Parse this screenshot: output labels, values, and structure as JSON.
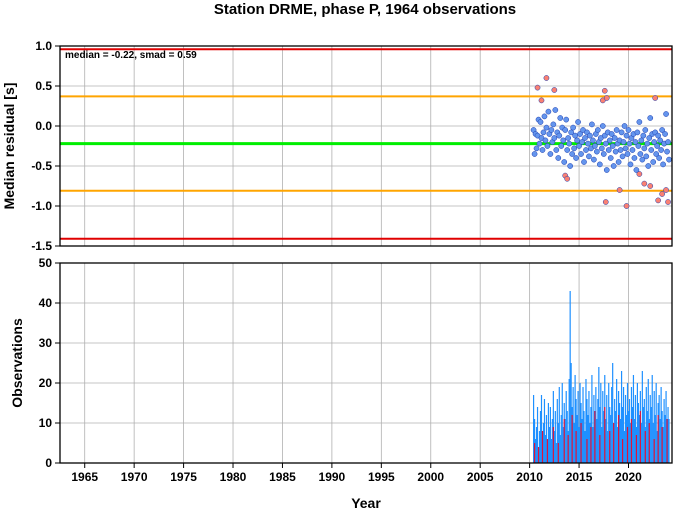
{
  "chart_data": [
    {
      "type": "scatter",
      "title": "Station DRME, phase P, 1964 observations",
      "ylabel": "Median residual [s]",
      "annotation": "median = -0.22, smad = 0.59",
      "xlim": [
        1962.5,
        2024.4
      ],
      "ylim": [
        -1.5,
        1.0
      ],
      "yticks": [
        1.0,
        0.5,
        0.0,
        -0.5,
        -1.0,
        -1.5
      ],
      "ytick_labels": [
        "1.0",
        "0.5",
        "0.0",
        "-0.5",
        "-1.0",
        "-1.5"
      ],
      "grid": true,
      "reference_lines": [
        {
          "y": 0.96,
          "color": "#e00000"
        },
        {
          "y": 0.37,
          "color": "#ffa500"
        },
        {
          "y": -0.22,
          "color": "#00ee00"
        },
        {
          "y": -0.81,
          "color": "#ffa500"
        },
        {
          "y": -1.41,
          "color": "#e00000"
        }
      ],
      "series": [
        {
          "color": "#6495ed",
          "points": [
            [
              2010.4,
              -0.05
            ],
            [
              2010.5,
              -0.35
            ],
            [
              2010.6,
              -0.1
            ],
            [
              2010.7,
              -0.28
            ],
            [
              2010.8,
              -0.12
            ],
            [
              2010.9,
              0.08
            ],
            [
              2011.0,
              -0.22
            ],
            [
              2011.1,
              0.05
            ],
            [
              2011.2,
              -0.15
            ],
            [
              2011.3,
              -0.3
            ],
            [
              2011.4,
              -0.08
            ],
            [
              2011.5,
              0.12
            ],
            [
              2011.6,
              -0.18
            ],
            [
              2011.7,
              -0.02
            ],
            [
              2011.8,
              -0.25
            ],
            [
              2011.9,
              0.18
            ],
            [
              2012.0,
              -0.1
            ],
            [
              2012.1,
              -0.35
            ],
            [
              2012.2,
              -0.05
            ],
            [
              2012.3,
              -0.2
            ],
            [
              2012.4,
              0.02
            ],
            [
              2012.5,
              -0.15
            ],
            [
              2012.6,
              0.2
            ],
            [
              2012.7,
              -0.3
            ],
            [
              2012.8,
              -0.08
            ],
            [
              2012.9,
              -0.4
            ],
            [
              2013.0,
              -0.12
            ],
            [
              2013.1,
              0.1
            ],
            [
              2013.2,
              -0.25
            ],
            [
              2013.3,
              -0.02
            ],
            [
              2013.4,
              -0.18
            ],
            [
              2013.5,
              -0.45
            ],
            [
              2013.6,
              -0.05
            ],
            [
              2013.7,
              0.08
            ],
            [
              2013.8,
              -0.3
            ],
            [
              2013.9,
              -0.15
            ],
            [
              2014.0,
              -0.22
            ],
            [
              2014.1,
              -0.5
            ],
            [
              2014.2,
              -0.08
            ],
            [
              2014.3,
              -0.35
            ],
            [
              2014.4,
              -0.02
            ],
            [
              2014.5,
              -0.28
            ],
            [
              2014.6,
              -0.12
            ],
            [
              2014.7,
              -0.4
            ],
            [
              2014.8,
              -0.18
            ],
            [
              2014.9,
              0.05
            ],
            [
              2015.0,
              -0.25
            ],
            [
              2015.1,
              -0.1
            ],
            [
              2015.2,
              -0.35
            ],
            [
              2015.3,
              -0.2
            ],
            [
              2015.4,
              -0.05
            ],
            [
              2015.5,
              -0.45
            ],
            [
              2015.6,
              -0.15
            ],
            [
              2015.7,
              -0.3
            ],
            [
              2015.8,
              -0.08
            ],
            [
              2015.9,
              -0.22
            ],
            [
              2016.0,
              -0.38
            ],
            [
              2016.1,
              -0.12
            ],
            [
              2016.2,
              -0.28
            ],
            [
              2016.3,
              0.02
            ],
            [
              2016.4,
              -0.18
            ],
            [
              2016.5,
              -0.42
            ],
            [
              2016.6,
              -0.25
            ],
            [
              2016.7,
              -0.1
            ],
            [
              2016.8,
              -0.32
            ],
            [
              2016.9,
              -0.05
            ],
            [
              2017.0,
              -0.2
            ],
            [
              2017.1,
              -0.48
            ],
            [
              2017.2,
              -0.15
            ],
            [
              2017.3,
              -0.28
            ],
            [
              2017.4,
              0.0
            ],
            [
              2017.5,
              -0.35
            ],
            [
              2017.6,
              -0.12
            ],
            [
              2017.7,
              -0.22
            ],
            [
              2017.8,
              -0.55
            ],
            [
              2017.9,
              -0.08
            ],
            [
              2018.0,
              -0.3
            ],
            [
              2018.1,
              -0.18
            ],
            [
              2018.2,
              -0.4
            ],
            [
              2018.3,
              -0.1
            ],
            [
              2018.4,
              -0.25
            ],
            [
              2018.5,
              -0.5
            ],
            [
              2018.6,
              -0.15
            ],
            [
              2018.7,
              -0.32
            ],
            [
              2018.8,
              -0.05
            ],
            [
              2018.9,
              -0.22
            ],
            [
              2019.0,
              -0.45
            ],
            [
              2019.1,
              -0.18
            ],
            [
              2019.2,
              -0.3
            ],
            [
              2019.3,
              -0.08
            ],
            [
              2019.4,
              -0.38
            ],
            [
              2019.5,
              -0.2
            ],
            [
              2019.6,
              0.0
            ],
            [
              2019.7,
              -0.28
            ],
            [
              2019.8,
              -0.12
            ],
            [
              2019.9,
              -0.35
            ],
            [
              2020.0,
              -0.05
            ],
            [
              2020.1,
              -0.22
            ],
            [
              2020.2,
              -0.48
            ],
            [
              2020.3,
              -0.15
            ],
            [
              2020.4,
              -0.3
            ],
            [
              2020.5,
              -0.1
            ],
            [
              2020.6,
              -0.4
            ],
            [
              2020.7,
              -0.2
            ],
            [
              2020.8,
              -0.55
            ],
            [
              2020.9,
              -0.08
            ],
            [
              2021.0,
              -0.25
            ],
            [
              2021.1,
              0.05
            ],
            [
              2021.2,
              -0.35
            ],
            [
              2021.3,
              -0.18
            ],
            [
              2021.4,
              -0.42
            ],
            [
              2021.5,
              -0.12
            ],
            [
              2021.6,
              -0.28
            ],
            [
              2021.7,
              -0.05
            ],
            [
              2021.8,
              -0.38
            ],
            [
              2021.9,
              -0.22
            ],
            [
              2022.0,
              -0.5
            ],
            [
              2022.1,
              -0.15
            ],
            [
              2022.2,
              0.1
            ],
            [
              2022.3,
              -0.3
            ],
            [
              2022.4,
              -0.1
            ],
            [
              2022.5,
              -0.45
            ],
            [
              2022.6,
              -0.2
            ],
            [
              2022.7,
              -0.08
            ],
            [
              2022.8,
              -0.35
            ],
            [
              2022.9,
              -0.25
            ],
            [
              2023.0,
              -0.12
            ],
            [
              2023.1,
              -0.4
            ],
            [
              2023.2,
              -0.18
            ],
            [
              2023.3,
              -0.3
            ],
            [
              2023.4,
              -0.05
            ],
            [
              2023.5,
              -0.48
            ],
            [
              2023.6,
              -0.22
            ],
            [
              2023.7,
              -0.1
            ],
            [
              2023.8,
              0.15
            ],
            [
              2023.9,
              -0.32
            ],
            [
              2024.0,
              -0.2
            ],
            [
              2024.1,
              -0.42
            ]
          ]
        },
        {
          "color": "#fa8072",
          "points": [
            [
              2010.8,
              0.48
            ],
            [
              2011.2,
              0.32
            ],
            [
              2011.7,
              0.6
            ],
            [
              2012.5,
              0.45
            ],
            [
              2013.6,
              -0.62
            ],
            [
              2013.8,
              -0.66
            ],
            [
              2017.4,
              0.32
            ],
            [
              2017.6,
              0.44
            ],
            [
              2017.8,
              0.35
            ],
            [
              2017.7,
              -0.95
            ],
            [
              2019.1,
              -0.8
            ],
            [
              2019.8,
              -1.0
            ],
            [
              2021.1,
              -0.6
            ],
            [
              2021.6,
              -0.72
            ],
            [
              2022.2,
              -0.75
            ],
            [
              2022.7,
              0.35
            ],
            [
              2023.0,
              -0.93
            ],
            [
              2023.4,
              -0.85
            ],
            [
              2023.8,
              -0.8
            ],
            [
              2024.0,
              -0.95
            ]
          ]
        }
      ]
    },
    {
      "type": "bar",
      "ylabel": "Observations",
      "xlabel": "Year",
      "xlim": [
        1962.5,
        2024.4
      ],
      "ylim": [
        0,
        50
      ],
      "yticks": [
        0,
        10,
        20,
        30,
        40,
        50
      ],
      "xticks": [
        1965,
        1970,
        1975,
        1980,
        1985,
        1990,
        1995,
        2000,
        2005,
        2010,
        2015,
        2020
      ],
      "grid": true,
      "series": [
        {
          "color": "#1e90ff",
          "x": [
            2010.4,
            2010.5,
            2010.6,
            2010.7,
            2010.8,
            2010.9,
            2011.0,
            2011.1,
            2011.2,
            2011.3,
            2011.4,
            2011.5,
            2011.6,
            2011.7,
            2011.8,
            2011.9,
            2012.0,
            2012.1,
            2012.2,
            2012.3,
            2012.4,
            2012.5,
            2012.6,
            2012.7,
            2012.8,
            2012.9,
            2013.0,
            2013.1,
            2013.2,
            2013.3,
            2013.4,
            2013.5,
            2013.6,
            2013.7,
            2013.8,
            2013.9,
            2014.0,
            2014.1,
            2014.2,
            2014.3,
            2014.4,
            2014.5,
            2014.6,
            2014.7,
            2014.8,
            2014.9,
            2015.0,
            2015.1,
            2015.2,
            2015.3,
            2015.4,
            2015.5,
            2015.6,
            2015.7,
            2015.8,
            2015.9,
            2016.0,
            2016.1,
            2016.2,
            2016.3,
            2016.4,
            2016.5,
            2016.6,
            2016.7,
            2016.8,
            2016.9,
            2017.0,
            2017.1,
            2017.2,
            2017.3,
            2017.4,
            2017.5,
            2017.6,
            2017.7,
            2017.8,
            2017.9,
            2018.0,
            2018.1,
            2018.2,
            2018.3,
            2018.4,
            2018.5,
            2018.6,
            2018.7,
            2018.8,
            2018.9,
            2019.0,
            2019.1,
            2019.2,
            2019.3,
            2019.4,
            2019.5,
            2019.6,
            2019.7,
            2019.8,
            2019.9,
            2020.0,
            2020.1,
            2020.2,
            2020.3,
            2020.4,
            2020.5,
            2020.6,
            2020.7,
            2020.8,
            2020.9,
            2021.0,
            2021.1,
            2021.2,
            2021.3,
            2021.4,
            2021.5,
            2021.6,
            2021.7,
            2021.8,
            2021.9,
            2022.0,
            2022.1,
            2022.2,
            2022.3,
            2022.4,
            2022.5,
            2022.6,
            2022.7,
            2022.8,
            2022.9,
            2023.0,
            2023.1,
            2023.2,
            2023.3,
            2023.4,
            2023.5,
            2023.6,
            2023.7,
            2023.8,
            2023.9,
            2024.0,
            2024.1
          ],
          "values": [
            17,
            11,
            6,
            9,
            14,
            4,
            8,
            13,
            17,
            5,
            10,
            16,
            7,
            12,
            3,
            15,
            9,
            14,
            6,
            11,
            18,
            8,
            13,
            5,
            16,
            10,
            19,
            7,
            12,
            20,
            9,
            15,
            11,
            18,
            13,
            8,
            21,
            43,
            25,
            14,
            19,
            10,
            22,
            16,
            12,
            18,
            9,
            20,
            15,
            11,
            19,
            13,
            8,
            21,
            16,
            12,
            18,
            10,
            14,
            22,
            9,
            17,
            13,
            19,
            11,
            16,
            24,
            14,
            20,
            9,
            18,
            13,
            22,
            11,
            17,
            8,
            20,
            14,
            12,
            19,
            25,
            10,
            16,
            13,
            21,
            9,
            18,
            15,
            11,
            23,
            14,
            19,
            8,
            17,
            12,
            20,
            13,
            16,
            10,
            19,
            14,
            22,
            11,
            17,
            9,
            20,
            15,
            12,
            18,
            10,
            23,
            14,
            16,
            9,
            19,
            13,
            21,
            11,
            17,
            14,
            22,
            10,
            18,
            12,
            20,
            8,
            15,
            17,
            11,
            19,
            13,
            9,
            16,
            12,
            18,
            10,
            14,
            11
          ]
        },
        {
          "color": "#dc143c",
          "x": [
            2010.5,
            2010.9,
            2011.3,
            2011.8,
            2012.4,
            2012.9,
            2013.5,
            2013.9,
            2014.3,
            2014.7,
            2015.2,
            2015.8,
            2016.2,
            2016.6,
            2017.1,
            2017.6,
            2018.1,
            2018.5,
            2019.0,
            2019.4,
            2019.9,
            2020.3,
            2020.8,
            2021.2,
            2021.7,
            2022.1,
            2022.6,
            2023.0,
            2023.4,
            2023.9
          ],
          "values": [
            5,
            4,
            8,
            6,
            9,
            5,
            11,
            7,
            12,
            8,
            10,
            6,
            9,
            13,
            7,
            14,
            8,
            10,
            12,
            6,
            9,
            11,
            7,
            13,
            8,
            10,
            6,
            12,
            9,
            11
          ]
        }
      ]
    }
  ]
}
